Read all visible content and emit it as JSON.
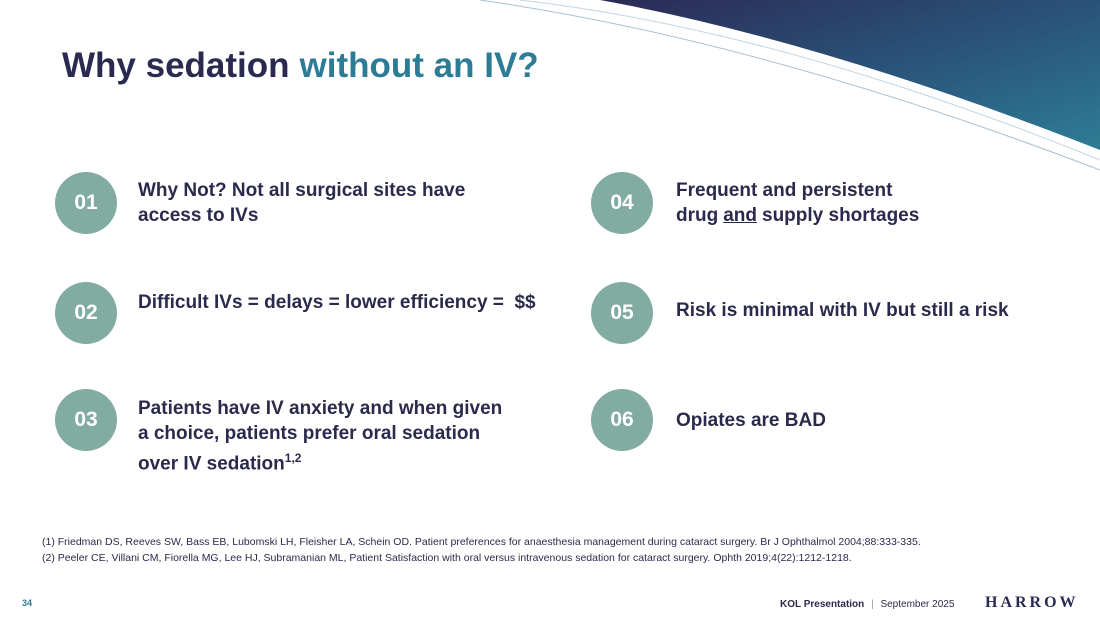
{
  "title": {
    "lead": "Why sedation",
    "accent": "without an IV?"
  },
  "items": [
    {
      "number": "01",
      "text": "Why Not? Not all surgical sites have access to IVs"
    },
    {
      "number": "02",
      "text": "Difficult IVs = delays = lower efficiency =  $$"
    },
    {
      "number": "03",
      "text": "Patients have IV anxiety and when given a choice, patients prefer oral sedation over IV sedation",
      "superscript": "1,2"
    },
    {
      "number": "04",
      "text": "Frequent and persistent drug",
      "underlined": "and",
      "after": "supply shortages"
    },
    {
      "number": "05",
      "text": "Risk is minimal with IV but still a risk"
    },
    {
      "number": "06",
      "text": "Opiates are BAD"
    }
  ],
  "references": [
    "(1) Friedman DS, Reeves SW, Bass EB, Lubomski LH, Fleisher LA, Schein OD. Patient preferences for anaesthesia management during cataract surgery. Br J Ophthalmol 2004;88:333-335.",
    "(2) Peeler CE, Villani CM, Fiorella MG, Lee HJ, Subramanian ML, Patient Satisfaction with oral versus intravenous sedation for cataract surgery. Ophth 2019;4(22):1212-1218."
  ],
  "footer": {
    "page": "34",
    "presentation": "KOL Presentation",
    "separator": "|",
    "date": "September 2025",
    "logo": "HARROW"
  }
}
